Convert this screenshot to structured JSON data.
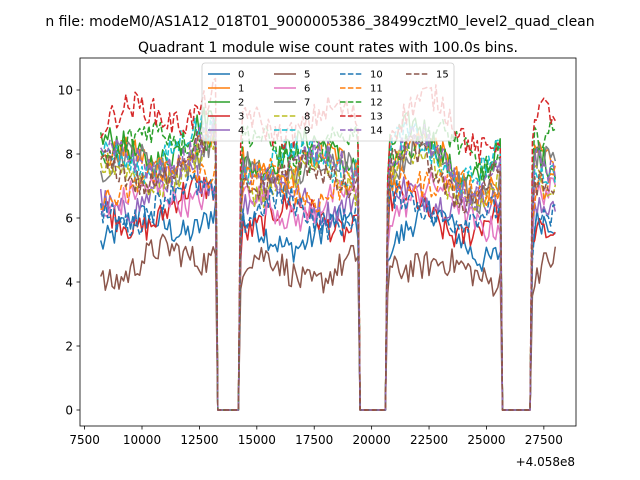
{
  "chart_data": {
    "type": "line",
    "suptitle": "n file: modeM0/AS1A12_018T01_9000005386_38499cztM0_level2_quad_clean",
    "title": "Quadrant 1 module wise count rates with 100.0s bins.",
    "xlabel": "",
    "ylabel": "",
    "x_offset_label": "+4.058e8",
    "xlim": [
      7300,
      28900
    ],
    "ylim": [
      -0.5,
      11.0
    ],
    "x_ticks": [
      7500,
      10000,
      12500,
      15000,
      17500,
      20000,
      22500,
      25000,
      27500
    ],
    "x_tick_labels": [
      "7500",
      "10000",
      "12500",
      "15000",
      "17500",
      "20000",
      "22500",
      "25000",
      "27500"
    ],
    "y_ticks": [
      0,
      2,
      4,
      6,
      8,
      10
    ],
    "y_tick_labels": [
      "0",
      "2",
      "4",
      "6",
      "8",
      "10"
    ],
    "gaps": [
      [
        13200,
        14300
      ],
      [
        19400,
        20700
      ],
      [
        25600,
        27000
      ]
    ],
    "segments": [
      [
        8200,
        13200
      ],
      [
        14300,
        19400
      ],
      [
        20700,
        25600
      ],
      [
        27000,
        28000
      ]
    ],
    "bin_width": 100,
    "legend_location": "upper center",
    "series": [
      {
        "name": "0",
        "color": "#1f77b4",
        "style": "solid",
        "base": 5.5
      },
      {
        "name": "1",
        "color": "#ff7f0e",
        "style": "solid",
        "base": 7.6
      },
      {
        "name": "2",
        "color": "#2ca02c",
        "style": "solid",
        "base": 8.0
      },
      {
        "name": "3",
        "color": "#d62728",
        "style": "solid",
        "base": 6.0
      },
      {
        "name": "4",
        "color": "#9467bd",
        "style": "solid",
        "base": 6.6
      },
      {
        "name": "5",
        "color": "#8c564b",
        "style": "solid",
        "base": 4.4
      },
      {
        "name": "6",
        "color": "#e377c2",
        "style": "solid",
        "base": 6.4
      },
      {
        "name": "7",
        "color": "#7f7f7f",
        "style": "solid",
        "base": 7.5
      },
      {
        "name": "8",
        "color": "#bcbd22",
        "style": "dashed",
        "base": 7.2
      },
      {
        "name": "9",
        "color": "#17becf",
        "style": "dashed",
        "base": 7.8
      },
      {
        "name": "10",
        "color": "#1f77b4",
        "style": "dashed",
        "base": 6.2
      },
      {
        "name": "11",
        "color": "#ff7f0e",
        "style": "dashed",
        "base": 7.0
      },
      {
        "name": "12",
        "color": "#2ca02c",
        "style": "dashed",
        "base": 8.2
      },
      {
        "name": "13",
        "color": "#d62728",
        "style": "dashed",
        "base": 9.0
      },
      {
        "name": "14",
        "color": "#9467bd",
        "style": "dashed",
        "base": 7.6
      },
      {
        "name": "15",
        "color": "#8c564b",
        "style": "dashed",
        "base": 7.3
      }
    ]
  }
}
